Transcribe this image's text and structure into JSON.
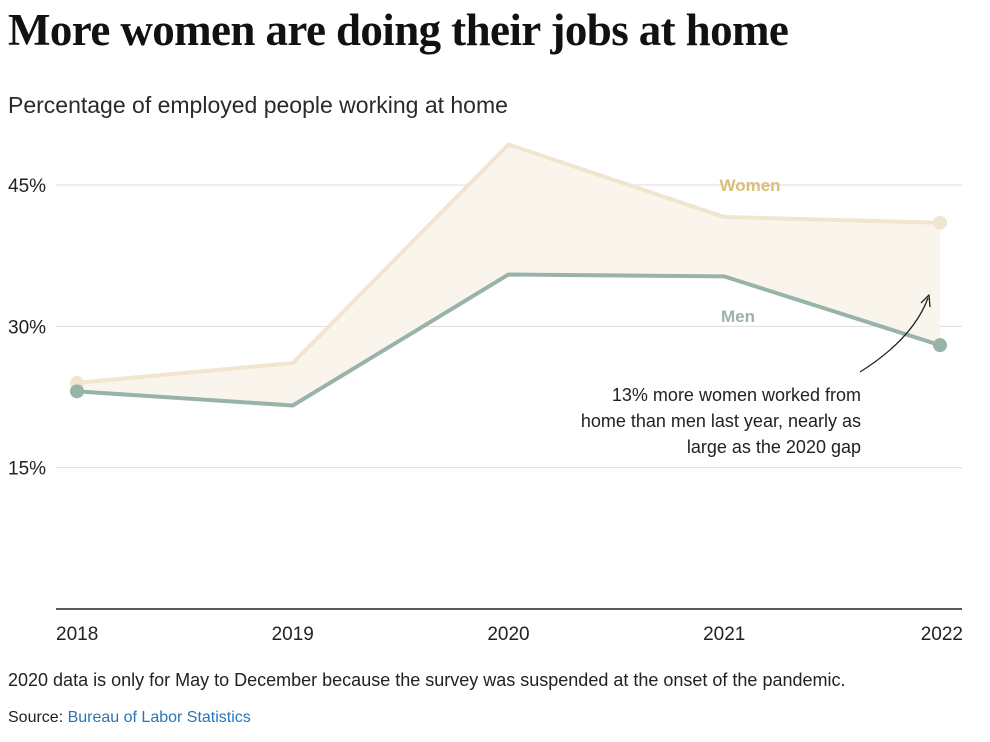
{
  "header": {
    "title": "More women are doing their jobs at home",
    "subtitle": "Percentage of employed people working at home"
  },
  "chart_data": {
    "type": "line",
    "title": "More women are doing their jobs at home",
    "subtitle": "Percentage of employed people working at home",
    "xlabel": "",
    "ylabel": "",
    "categories": [
      "2018",
      "2019",
      "2020",
      "2021",
      "2022"
    ],
    "y_ticks": [
      15,
      30,
      45
    ],
    "y_tick_labels": [
      "15%",
      "30%",
      "45%"
    ],
    "ylim": [
      0,
      50
    ],
    "grid": true,
    "series": [
      {
        "name": "Women",
        "values": [
          24.0,
          26.1,
          49.3,
          41.6,
          41.0
        ],
        "color": "#f0e6cf",
        "label_color": "#dcbd7a",
        "endpoint_markers": true
      },
      {
        "name": "Men",
        "values": [
          23.1,
          21.6,
          35.5,
          35.3,
          28.0
        ],
        "color": "#98b4a9",
        "label_color": "#98b4a9",
        "endpoint_markers": true
      }
    ],
    "gap_fill_color": "#faf5ec",
    "annotation": {
      "lines": [
        "13% more women worked from",
        "home than men last year, nearly as",
        "large as the 2020 gap"
      ]
    }
  },
  "footer": {
    "note": "2020 data is only for May to December because the survey was suspended at the onset of the pandemic.",
    "source_prefix": "Source: ",
    "source_link": "Bureau of Labor Statistics"
  },
  "colors": {
    "grid": "#dddddd",
    "axis": "#222222",
    "text": "#222222",
    "link": "#2b74b8"
  }
}
